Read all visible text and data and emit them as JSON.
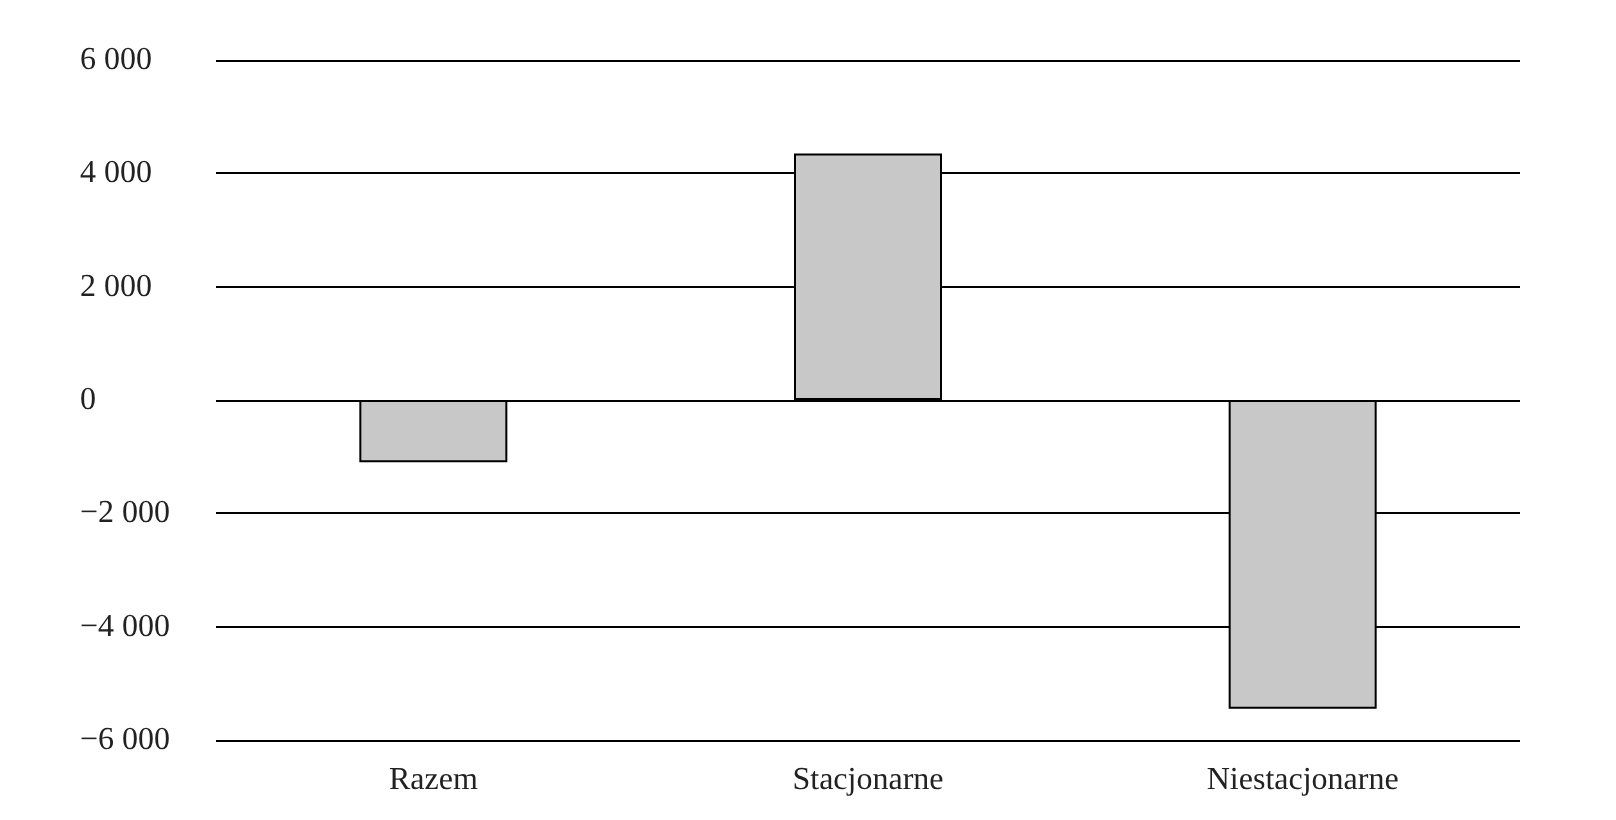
{
  "chart_data": {
    "type": "bar",
    "categories": [
      "Razem",
      "Stacjonarne",
      "Niestacjonarne"
    ],
    "values": [
      -1100,
      4350,
      -5450
    ],
    "color": "#c8c8c8",
    "ylim": [
      -6000,
      6000
    ],
    "yticks": [
      {
        "value": -6000,
        "label": "−6 000"
      },
      {
        "value": -4000,
        "label": "−4 000"
      },
      {
        "value": -2000,
        "label": "−2 000"
      },
      0,
      {
        "value": 2000,
        "label": "2 000"
      },
      {
        "value": 4000,
        "label": "4 000"
      },
      {
        "value": 6000,
        "label": "6 000"
      }
    ],
    "grid": "y"
  }
}
